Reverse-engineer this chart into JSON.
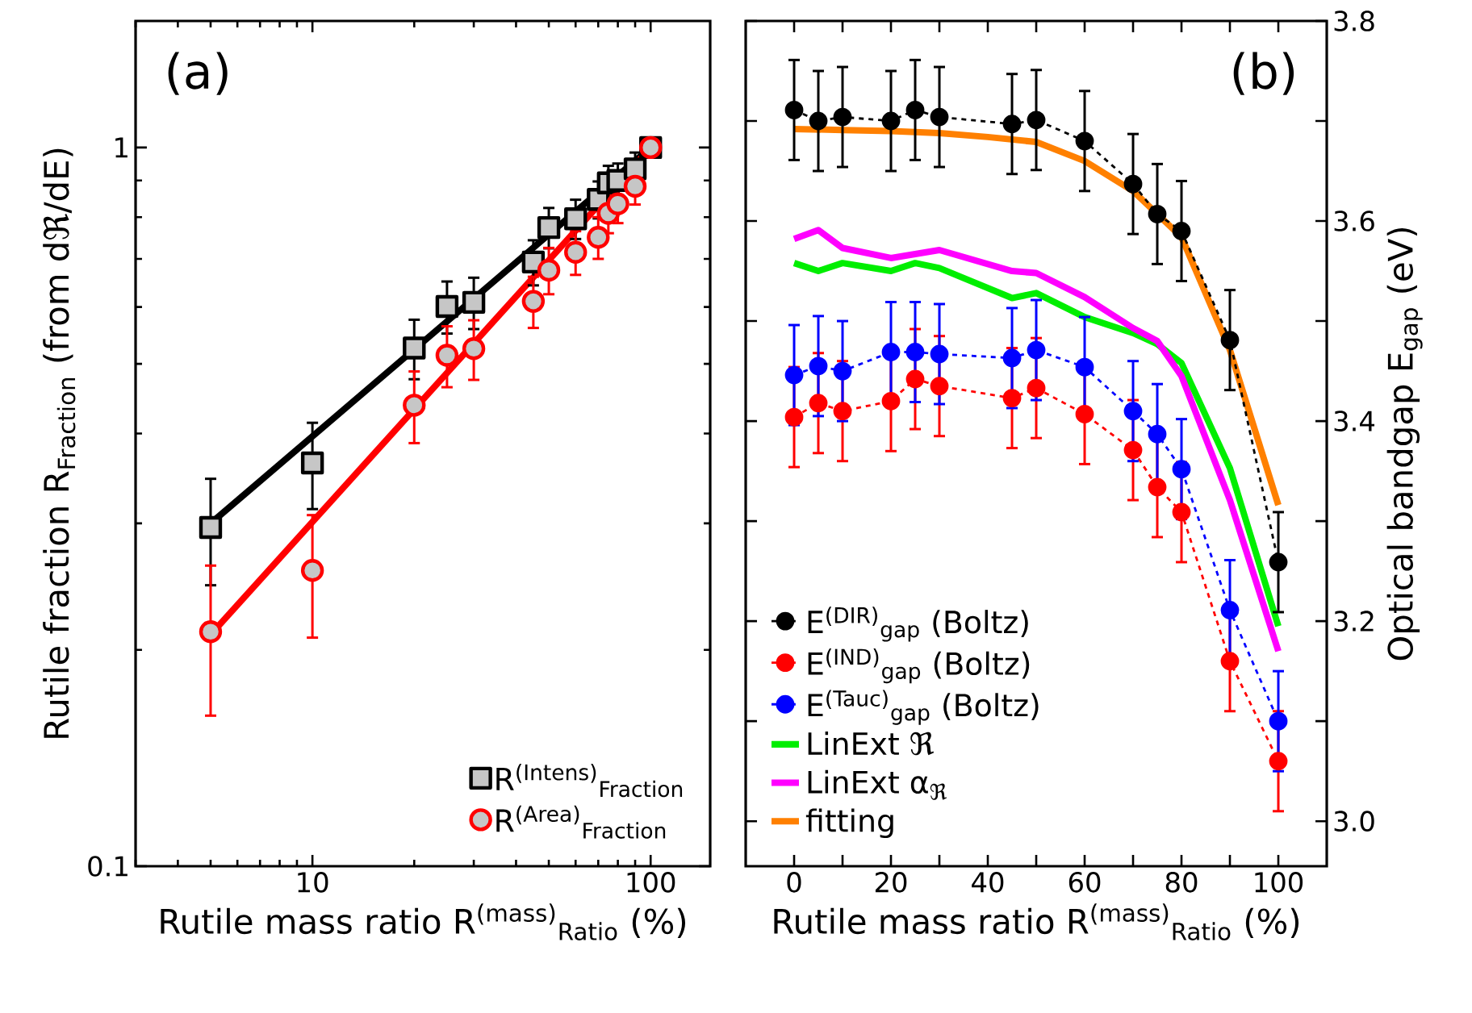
{
  "chart_data": [
    {
      "type": "scatter",
      "log": "xy",
      "xlabel": "Rutile mass ratio R$^{(mass)}$$_{Ratio}$ (%)",
      "ylabel": "Rutile fraction R$_{Fraction}$ (from dℜ/dE)",
      "annotations": [
        "(a)"
      ],
      "xlim": [
        3,
        150
      ],
      "ylim": [
        0.1,
        1.5
      ],
      "xticks": [
        10,
        100
      ],
      "yticks": [
        0.1,
        1
      ],
      "legend": "bottom right",
      "series": [
        {
          "name": "R$^{(Intens)}$$_{Fraction}$",
          "color": "#000000",
          "marker": "square",
          "x": [
            5,
            10,
            20,
            25,
            30,
            45,
            50,
            60,
            70,
            75,
            80,
            90,
            100
          ],
          "values": [
            0.296,
            0.364,
            0.526,
            0.601,
            0.609,
            0.693,
            0.774,
            0.796,
            0.847,
            0.893,
            0.9,
            0.934,
            1.0
          ],
          "errors": [
            0.05,
            0.05,
            0.05,
            0.05,
            0.05,
            0.05,
            0.05,
            0.05,
            0.05,
            0.05,
            0.05,
            0.05,
            null
          ]
        },
        {
          "name": "R$^{(Area)}$$_{Fraction}$",
          "color": "#ff0000",
          "marker": "circle",
          "x": [
            5,
            10,
            20,
            25,
            30,
            45,
            50,
            60,
            70,
            75,
            80,
            90,
            100
          ],
          "values": [
            0.212,
            0.258,
            0.438,
            0.514,
            0.525,
            0.611,
            0.675,
            0.715,
            0.75,
            0.81,
            0.835,
            0.883,
            1.0
          ],
          "errors": [
            0.05,
            0.05,
            0.05,
            0.05,
            0.05,
            0.05,
            0.05,
            0.05,
            0.05,
            0.05,
            0.05,
            0.05,
            null
          ]
        },
        {
          "type": "line",
          "color": "#000000",
          "marker": "none",
          "x": [
            5,
            100
          ],
          "values": [
            0.3,
            1.0
          ]
        },
        {
          "type": "line",
          "color": "#ff0000",
          "marker": "none",
          "x": [
            5,
            100
          ],
          "values": [
            0.21,
            1.0
          ]
        }
      ]
    },
    {
      "type": "line",
      "xlabel": "Rutile mass ratio R$^{(mass)}$$_{Ratio}$ (%)",
      "ylabel": "Optical bandgap E$_{gap}$ (eV)",
      "annotations": [
        "(b)"
      ],
      "xlim": [
        -10,
        110
      ],
      "ylim": [
        2.955,
        3.8
      ],
      "xticks": [
        0,
        {
          "value": 10,
          "label": null
        },
        20,
        {
          "value": 30,
          "label": null
        },
        40,
        {
          "value": 50,
          "label": null
        },
        60,
        {
          "value": 70,
          "label": null
        },
        80,
        {
          "value": 90,
          "label": null
        },
        100
      ],
      "yticks": [
        {
          "value": 3.0,
          "label": "3.0"
        },
        {
          "value": 3.1,
          "label": null
        },
        {
          "value": 3.2,
          "label": "3.2"
        },
        {
          "value": 3.3,
          "label": null
        },
        {
          "value": 3.4,
          "label": "3.4"
        },
        {
          "value": 3.5,
          "label": null
        },
        {
          "value": 3.6,
          "label": "3.6"
        },
        {
          "value": 3.7,
          "label": null
        },
        {
          "value": 3.8,
          "label": "3.8"
        }
      ],
      "legend": "bottom left",
      "series": [
        {
          "name": "E$^{(DIR)}$$_{gap}$ (Boltz)",
          "color": "#000000",
          "marker": "circle",
          "line_style": "dashed",
          "x": [
            0,
            5,
            10,
            20,
            25,
            30,
            45,
            50,
            60,
            70,
            75,
            80,
            90,
            100
          ],
          "values": [
            3.711,
            3.7,
            3.704,
            3.7,
            3.711,
            3.704,
            3.697,
            3.701,
            3.68,
            3.637,
            3.607,
            3.59,
            3.481,
            3.259
          ],
          "errors": [
            0.05,
            0.05,
            0.05,
            0.05,
            0.05,
            0.05,
            0.05,
            0.05,
            0.05,
            0.05,
            0.05,
            0.05,
            0.05,
            0.05
          ]
        },
        {
          "name": "E$^{(IND)}$$_{gap}$ (Boltz)",
          "color": "#ff0000",
          "marker": "circle",
          "line_style": "dashed",
          "x": [
            0,
            5,
            10,
            20,
            25,
            30,
            45,
            50,
            60,
            70,
            75,
            80,
            90,
            100
          ],
          "values": [
            3.404,
            3.418,
            3.41,
            3.42,
            3.442,
            3.435,
            3.423,
            3.433,
            3.407,
            3.371,
            3.334,
            3.309,
            3.16,
            3.06
          ],
          "errors": [
            0.05,
            0.05,
            0.05,
            0.05,
            0.05,
            0.05,
            0.05,
            0.05,
            0.05,
            0.05,
            0.05,
            0.05,
            0.05,
            0.05
          ]
        },
        {
          "name": "E$^{(Tauc)}$$_{gap}$ (Boltz)",
          "color": "#0000ff",
          "marker": "circle",
          "line_style": "dashed",
          "x": [
            0,
            5,
            10,
            20,
            25,
            30,
            45,
            50,
            60,
            70,
            75,
            80,
            90,
            100
          ],
          "values": [
            3.446,
            3.455,
            3.45,
            3.469,
            3.469,
            3.467,
            3.463,
            3.471,
            3.454,
            3.41,
            3.387,
            3.352,
            3.211,
            3.1
          ],
          "errors": [
            0.05,
            0.05,
            0.05,
            0.05,
            0.05,
            0.05,
            0.05,
            0.05,
            0.05,
            0.05,
            0.05,
            0.05,
            0.05,
            0.05
          ]
        },
        {
          "name": "LinExt ℜ",
          "color": "#00ee00",
          "marker": "none",
          "line_style": "solid",
          "x": [
            0,
            5,
            10,
            20,
            25,
            30,
            45,
            50,
            60,
            70,
            75,
            80,
            90,
            100
          ],
          "values": [
            3.558,
            3.55,
            3.558,
            3.55,
            3.558,
            3.553,
            3.523,
            3.528,
            3.504,
            3.488,
            3.477,
            3.458,
            3.353,
            3.195
          ]
        },
        {
          "name": "LinExt α$_{ℜ}$",
          "color": "#ff00ff",
          "marker": "none",
          "line_style": "solid",
          "x": [
            0,
            5,
            10,
            20,
            25,
            30,
            45,
            50,
            60,
            70,
            75,
            80,
            90,
            100
          ],
          "values": [
            3.582,
            3.591,
            3.573,
            3.563,
            3.567,
            3.571,
            3.55,
            3.548,
            3.524,
            3.493,
            3.48,
            3.445,
            3.321,
            3.17
          ]
        },
        {
          "name": "fitting",
          "color": "#ff8000",
          "marker": "none",
          "line_style": "solid",
          "x": [
            0,
            10,
            20,
            30,
            40,
            50,
            60,
            70,
            80,
            90,
            100
          ],
          "values": [
            3.692,
            3.691,
            3.69,
            3.688,
            3.684,
            3.679,
            3.66,
            3.63,
            3.584,
            3.471,
            3.316
          ]
        }
      ]
    }
  ]
}
